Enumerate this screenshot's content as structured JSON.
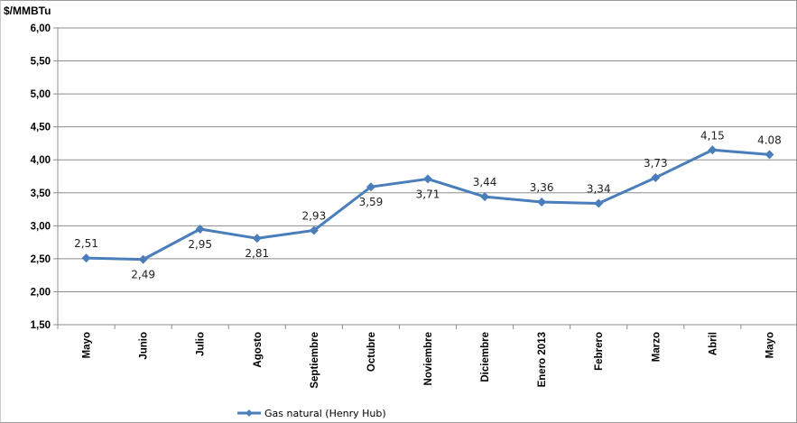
{
  "chart_data": {
    "type": "line",
    "ylabel": "$/MMBTu",
    "ylim": [
      1.5,
      6.0
    ],
    "yticks": [
      "1,50",
      "2,00",
      "2,50",
      "3,00",
      "3,50",
      "4,00",
      "4,50",
      "5,00",
      "5,50",
      "6,00"
    ],
    "categories": [
      "Mayo",
      "Junio",
      "Julio",
      "Agosto",
      "Septiembre",
      "Octubre",
      "Noviembre",
      "Diciembre",
      "Enero 2013",
      "Febrero",
      "Marzo",
      "Abril",
      "Mayo"
    ],
    "series": [
      {
        "name": "Gas natural (Henry Hub)",
        "color": "#4a7ebb",
        "values": [
          2.51,
          2.49,
          2.95,
          2.81,
          2.93,
          3.59,
          3.71,
          3.44,
          3.36,
          3.34,
          3.73,
          4.15,
          4.08
        ],
        "labels": [
          "2,51",
          "2,49",
          "2,95",
          "2,81",
          "2,93",
          "3,59",
          "3,71",
          "3,44",
          "3,36",
          "3,34",
          "3,73",
          "4,15",
          "4.08"
        ],
        "label_positions": [
          "above",
          "below",
          "below",
          "below",
          "above",
          "below",
          "below",
          "above",
          "above",
          "above",
          "above",
          "above",
          "above"
        ]
      }
    ],
    "grid": true,
    "legend": "bottom-left"
  }
}
